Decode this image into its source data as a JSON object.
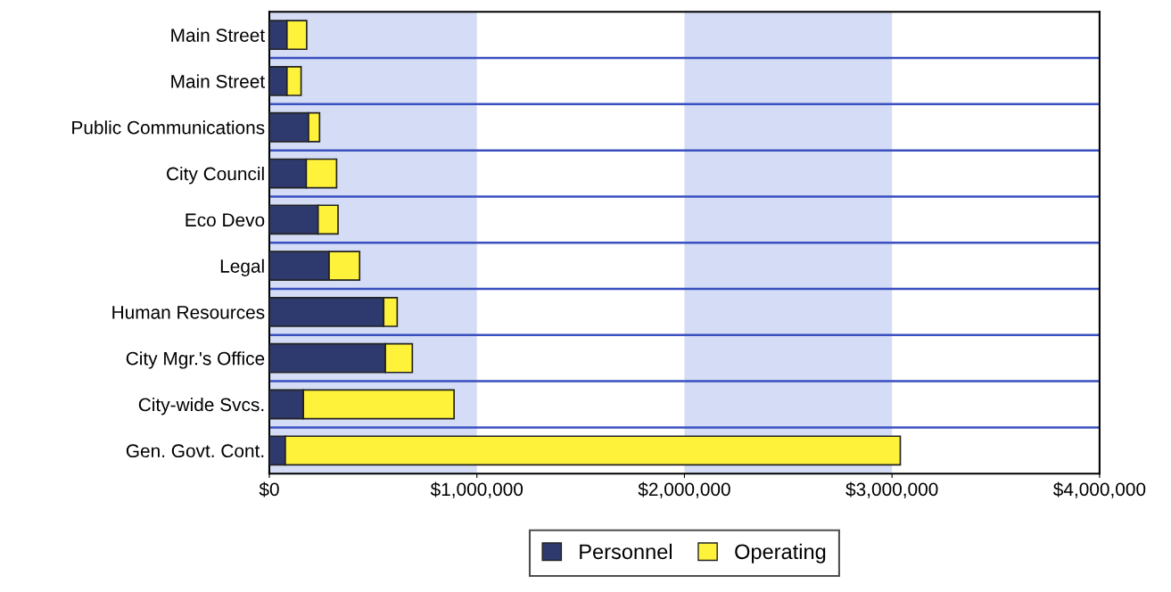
{
  "chart_data": {
    "type": "bar",
    "orientation": "horizontal",
    "stacked": true,
    "categories": [
      "Main Street",
      "Main Street",
      "Public Communications",
      "City Council",
      "Eco Devo",
      "Legal",
      "Human Resources",
      "City Mgr.'s Office",
      "City-wide Svcs.",
      "Gen. Govt. Cont."
    ],
    "series": [
      {
        "name": "Personnel",
        "color": "#2e3a6e",
        "values": [
          85000,
          85000,
          189000,
          178000,
          235000,
          288000,
          551000,
          559000,
          164000,
          77000
        ]
      },
      {
        "name": "Operating",
        "color": "#fff23a",
        "values": [
          95000,
          68000,
          53000,
          146000,
          96000,
          147000,
          65000,
          130000,
          726000,
          2963000
        ]
      }
    ],
    "xlim": [
      0,
      4000000
    ],
    "xticks": [
      {
        "value": 0,
        "label": "$0"
      },
      {
        "value": 1000000,
        "label": "$1,000,000"
      },
      {
        "value": 2000000,
        "label": "$2,000,000"
      },
      {
        "value": 3000000,
        "label": "$3,000,000"
      },
      {
        "value": 4000000,
        "label": "$4,000,000"
      }
    ],
    "bands": [
      {
        "axis": "x",
        "from": 0,
        "to": 1000000,
        "color": "#d4ddf5"
      },
      {
        "axis": "x",
        "from": 2000000,
        "to": 3000000,
        "color": "#d4ddf5"
      }
    ],
    "grid": "y",
    "legend": "bottom"
  }
}
